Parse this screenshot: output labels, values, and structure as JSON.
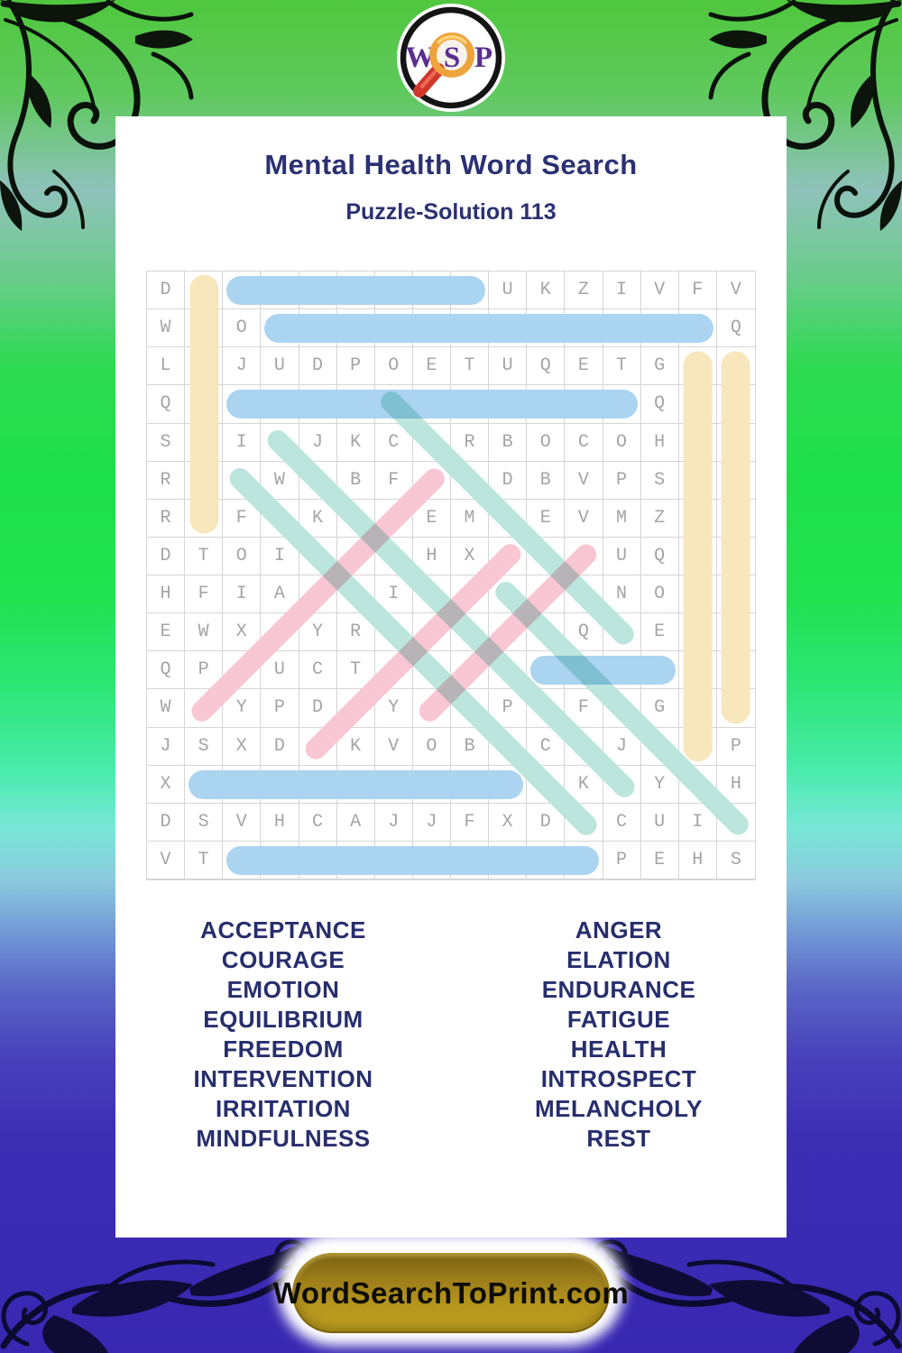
{
  "logo": {
    "letters": [
      "W",
      "S",
      "P"
    ]
  },
  "header": {
    "title": "Mental Health Word Search",
    "subtitle": "Puzzle-Solution 113"
  },
  "palette": {
    "blue": "#abd4f1",
    "yellow": "#f8e7bd",
    "teal": "#bce6dd",
    "pink": "#f8c7d3",
    "navy": "#272e6d",
    "title_navy": "#2b3173",
    "button_gold": "#b3931c",
    "background_green": "#21e250",
    "background_indigo": "#3927b2"
  },
  "grid": {
    "size": 16,
    "rows": [
      "DCEMOTIONUKZIVFV",
      "WOOINTERVENTIONQ",
      "LUJUDPOETUQETGEM",
      "QRMINDFULNESSQQE",
      "SAIIJKCARBOCOHUL",
      "RGAWNBFNTDBVPSIA",
      "REFCKTOEMIEVMZLN",
      "DTOICIRHXHGRUQIC",
      "HFIATEIOTFEUNOBH",
      "EWXAYRPLSGRQEERO",
      "QPLUCTATNPRESTIL",
      "WEYPDEYAAPEFEGUY",
      "JSXDHKVOBNCCJDMP",
      "XENDURANCECKTYOH",
      "DSVHCAJJFXDECUIM",
      "VTIRRITATIONPEHS"
    ]
  },
  "solutions": [
    {
      "word": "EMOTION",
      "row": 1,
      "col": 3,
      "dr": 0,
      "dc": 1,
      "color": "blue"
    },
    {
      "word": "INTERVENTION",
      "row": 2,
      "col": 4,
      "dr": 0,
      "dc": 1,
      "color": "blue"
    },
    {
      "word": "MINDFULNESS",
      "row": 4,
      "col": 3,
      "dr": 0,
      "dc": 1,
      "color": "blue"
    },
    {
      "word": "REST",
      "row": 11,
      "col": 11,
      "dr": 0,
      "dc": 1,
      "color": "blue"
    },
    {
      "word": "ENDURANCE",
      "row": 14,
      "col": 2,
      "dr": 0,
      "dc": 1,
      "color": "blue"
    },
    {
      "word": "IRRITATION",
      "row": 16,
      "col": 3,
      "dr": 0,
      "dc": 1,
      "color": "blue"
    },
    {
      "word": "COURAGE",
      "row": 1,
      "col": 2,
      "dr": 1,
      "dc": 0,
      "color": "yellow"
    },
    {
      "word": "EQUILIBRIUM",
      "row": 3,
      "col": 15,
      "dr": 1,
      "dc": 0,
      "color": "yellow"
    },
    {
      "word": "MELANCHOLY",
      "row": 3,
      "col": 16,
      "dr": 1,
      "dc": 0,
      "color": "yellow"
    },
    {
      "word": "FATIGUE",
      "row": 4,
      "col": 7,
      "dr": 1,
      "dc": 1,
      "color": "teal"
    },
    {
      "word": "INTROSPECT",
      "row": 5,
      "col": 4,
      "dr": 1,
      "dc": 1,
      "color": "teal"
    },
    {
      "word": "ACCEPTANCE",
      "row": 6,
      "col": 3,
      "dr": 1,
      "dc": 1,
      "color": "teal"
    },
    {
      "word": "FREEDOM",
      "row": 9,
      "col": 10,
      "dr": 1,
      "dc": 1,
      "color": "teal"
    },
    {
      "word": "ELATION",
      "row": 12,
      "col": 2,
      "dr": -1,
      "dc": 1,
      "color": "pink"
    },
    {
      "word": "HEALTH",
      "row": 13,
      "col": 5,
      "dr": -1,
      "dc": 1,
      "color": "pink"
    },
    {
      "word": "ANGER",
      "row": 12,
      "col": 8,
      "dr": -1,
      "dc": 1,
      "color": "pink"
    }
  ],
  "word_lists": {
    "left": [
      "ACCEPTANCE",
      "COURAGE",
      "EMOTION",
      "EQUILIBRIUM",
      "FREEDOM",
      "INTERVENTION",
      "IRRITATION",
      "MINDFULNESS"
    ],
    "right": [
      "ANGER",
      "ELATION",
      "ENDURANCE",
      "FATIGUE",
      "HEALTH",
      "INTROSPECT",
      "MELANCHOLY",
      "REST"
    ]
  },
  "footer": {
    "button_label": "WordSearchToPrint.com"
  }
}
